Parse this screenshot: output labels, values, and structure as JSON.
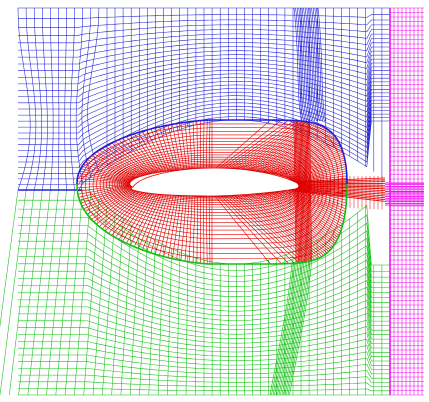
{
  "figure": {
    "blocks": [
      {
        "id": "upper-block",
        "color": "#2020d8"
      },
      {
        "id": "lower-block",
        "color": "#10c010"
      },
      {
        "id": "airfoil-o-block",
        "color": "#e00000"
      },
      {
        "id": "outlet-block",
        "color": "#ee10ee"
      }
    ],
    "airfoil": {
      "fill": "#ffffff"
    }
  }
}
